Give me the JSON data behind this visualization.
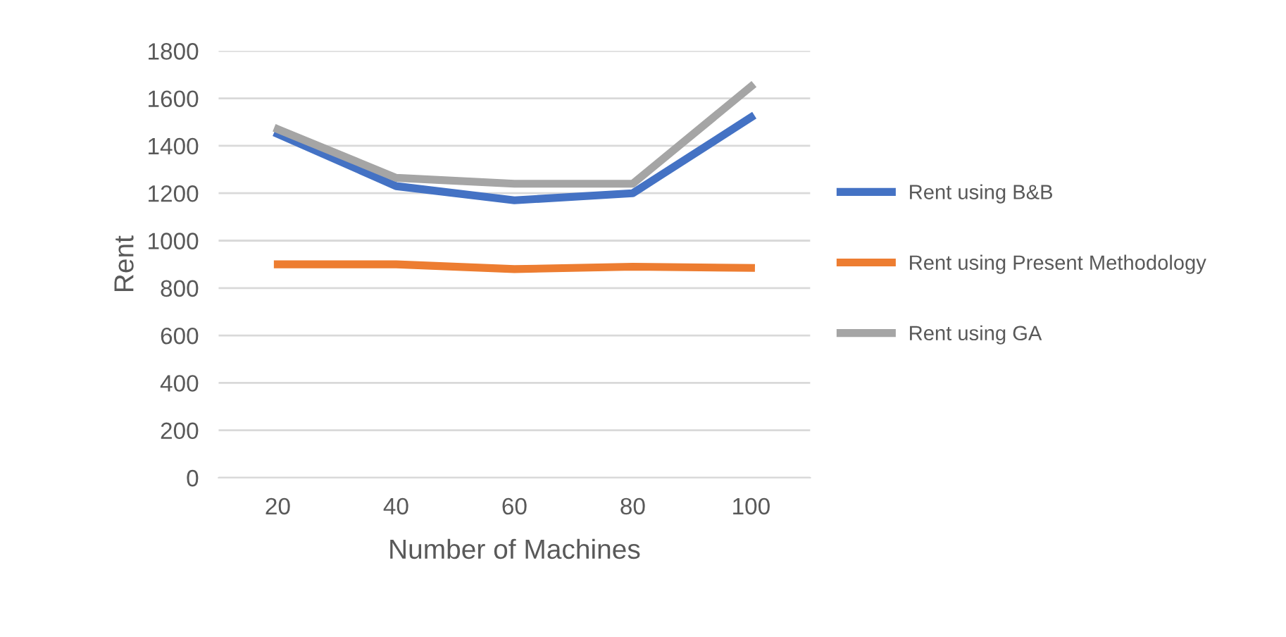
{
  "chart_data": {
    "type": "line",
    "xlabel": "Number of Machines",
    "ylabel": "Rent",
    "categories": [
      "20",
      "40",
      "60",
      "80",
      "100"
    ],
    "series": [
      {
        "name": "Rent using B&B",
        "color": "#4472c4",
        "values": [
          1450,
          1230,
          1170,
          1200,
          1520
        ]
      },
      {
        "name": "Rent using Present Methodology",
        "color": "#ed7d31",
        "values": [
          900,
          900,
          880,
          890,
          885
        ]
      },
      {
        "name": "Rent using GA",
        "color": "#a5a5a5",
        "values": [
          1470,
          1265,
          1240,
          1240,
          1650
        ]
      }
    ],
    "ylim": [
      0,
      1800
    ],
    "yticks": [
      0,
      200,
      400,
      600,
      800,
      1000,
      1200,
      1400,
      1600,
      1800
    ],
    "grid": "y",
    "legend": "right",
    "marker": "none",
    "line_style": "solid"
  }
}
